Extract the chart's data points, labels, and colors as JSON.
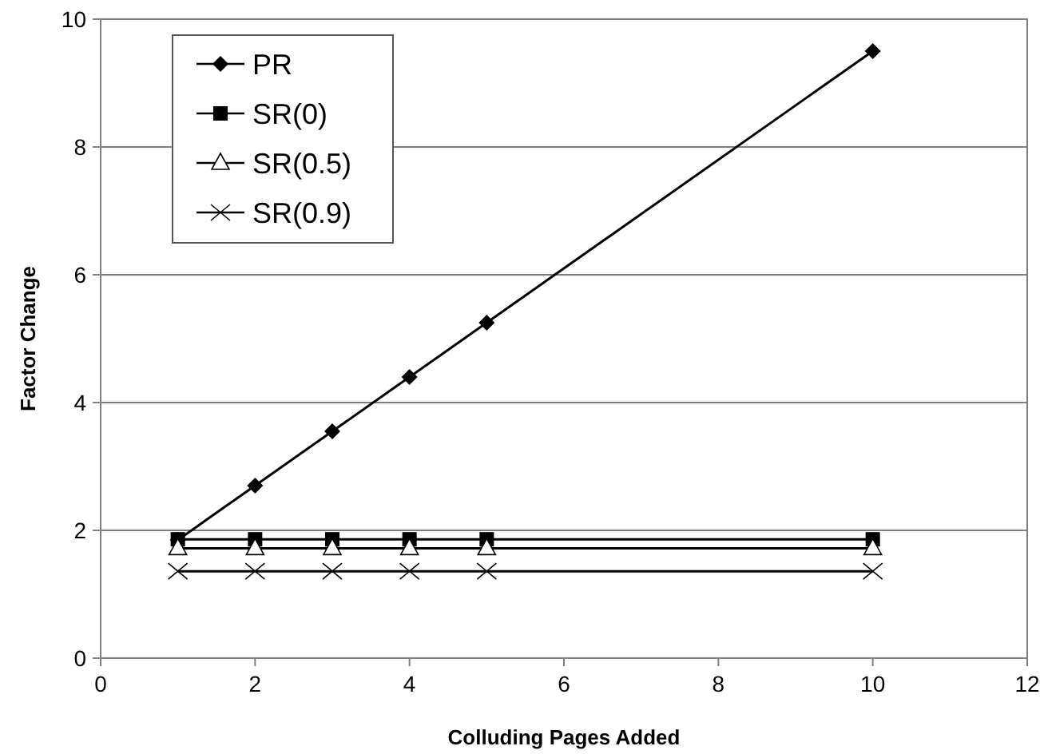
{
  "chart_data": {
    "type": "line",
    "xlabel": "Colluding Pages Added",
    "ylabel": "Factor Change",
    "x": [
      1,
      2,
      3,
      4,
      5,
      10
    ],
    "series": [
      {
        "name": "PR",
        "color": "#000000",
        "marker": "diamond",
        "values": [
          1.85,
          2.7,
          3.55,
          4.4,
          5.25,
          9.5
        ]
      },
      {
        "name": "SR(0)",
        "color": "#000000",
        "marker": "square",
        "values": [
          1.86,
          1.86,
          1.86,
          1.86,
          1.86,
          1.86
        ]
      },
      {
        "name": "SR(0.5)",
        "color": "#000000",
        "marker": "triangle",
        "values": [
          1.72,
          1.72,
          1.72,
          1.72,
          1.72,
          1.72
        ]
      },
      {
        "name": "SR(0.9)",
        "color": "#000000",
        "marker": "cross",
        "values": [
          1.36,
          1.36,
          1.36,
          1.36,
          1.36,
          1.36
        ]
      }
    ],
    "xlim": [
      0,
      12
    ],
    "xticks": [
      0,
      2,
      4,
      6,
      8,
      10,
      12
    ],
    "ylim": [
      0,
      10
    ],
    "yticks": [
      0,
      2,
      4,
      6,
      8,
      10
    ],
    "grid": "y",
    "legend": "top left",
    "line_style": "solid"
  }
}
